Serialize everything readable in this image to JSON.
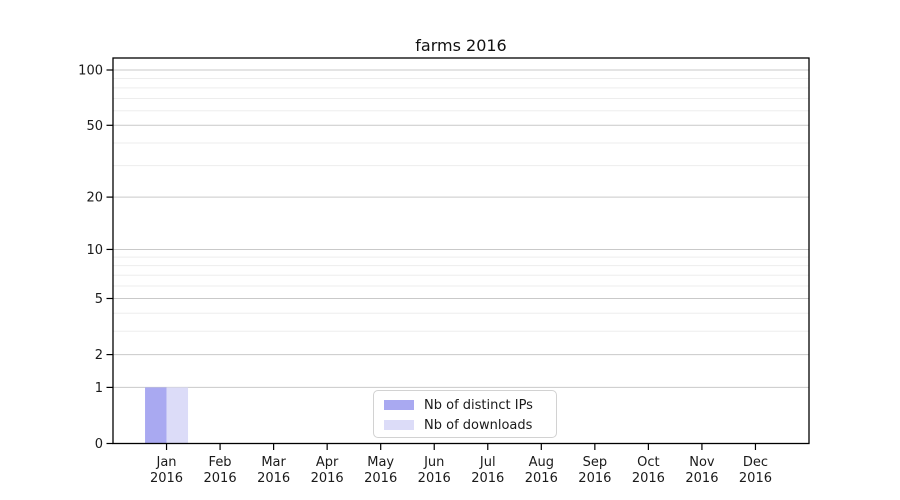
{
  "page": {
    "background": "#ffffff"
  },
  "chart_data": {
    "type": "bar",
    "title": "farms 2016",
    "categories": [
      "Jan",
      "Feb",
      "Mar",
      "Apr",
      "May",
      "Jun",
      "Jul",
      "Aug",
      "Sep",
      "Oct",
      "Nov",
      "Dec"
    ],
    "x_tick_second_line": "2016",
    "series": [
      {
        "name": "Nb of distinct IPs",
        "color": "#a9a9f1",
        "values": [
          1,
          0,
          0,
          0,
          0,
          0,
          0,
          0,
          0,
          0,
          0,
          0
        ]
      },
      {
        "name": "Nb of downloads",
        "color": "#dcdcf8",
        "values": [
          1,
          0,
          0,
          0,
          0,
          0,
          0,
          0,
          0,
          0,
          0,
          0
        ]
      }
    ],
    "yaxis": {
      "scale": "log1p",
      "tick_values": [
        0,
        1,
        2,
        5,
        10,
        20,
        50,
        100
      ],
      "minor_gridline_values": [
        3,
        4,
        6,
        7,
        8,
        9,
        30,
        40,
        60,
        70,
        80,
        90
      ],
      "range_max": 115
    },
    "grid": true,
    "legend": {
      "position": "bottom-center"
    }
  },
  "colors": {
    "major_gridline": "#c9c9c9",
    "minor_gridline": "#ededed",
    "spine": "#000000",
    "tick": "#000000",
    "text": "#1a1a1a",
    "legend_border": "#d2d2d2"
  }
}
